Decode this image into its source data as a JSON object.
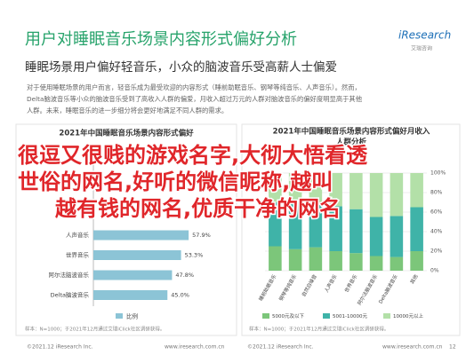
{
  "header": {
    "title": "用户对睡眠音乐场景内容形式偏好分析",
    "logo": {
      "brand": "iResearch",
      "sub": "艾瑞咨询"
    }
  },
  "subtitle": "睡眠场景用户偏好轻音乐，小众的脑波音乐受高薪人士偏爱",
  "paragraph": [
    "对于使用睡眠场景的用户而言，轻音乐成为最受欢迎的内容形式（睡前助眠音乐、钢琴等纯音乐、人声音乐）。然而，",
    "Delta脑波音乐等小众的脑波音乐受到了高收入人群的偏爱，月收入超过万元的人群对脑波音乐的偏好度明显高于其他",
    "人群。未来，睡眠音乐的进一步细分将会更好地满足不同人群的需求。"
  ],
  "left_chart": {
    "type": "bar",
    "title": "2021年中国睡眠音乐场景内容形式偏好",
    "categories": [
      "人声音乐",
      "世界音乐",
      "阿尔法脑波音乐",
      "Delta脑波音乐"
    ],
    "values": [
      57.9,
      53.3,
      47.8,
      45.0
    ],
    "value_labels": [
      "57.9%",
      "53.3%",
      "47.8%",
      "45.0%"
    ],
    "xlim": [
      0,
      100
    ],
    "color": "#8cc4d6",
    "legend": "比例",
    "note": "样本：N=1000；于2021年12月通过艾瑞iClick社区调研获得。"
  },
  "right_chart": {
    "type": "stacked-bar",
    "title": [
      "2021年中国睡眠音乐场景内容形式偏好月收入",
      "人群分析"
    ],
    "categories": [
      "睡前助眠音乐",
      "钢琴等纯音乐",
      "自然白噪音",
      "人声音乐",
      "世界音乐",
      "阿尔法脑波音乐",
      "Delta脑波音乐",
      "其他"
    ],
    "series": [
      {
        "name": "5000元及以下",
        "color": "#7cc67a",
        "values": [
          25,
          22,
          24,
          20,
          18,
          15,
          14,
          20
        ]
      },
      {
        "name": "5001-10000元",
        "color": "#3fb3a8",
        "values": [
          45,
          48,
          44,
          46,
          45,
          40,
          42,
          45
        ]
      },
      {
        "name": "10000元以上",
        "color": "#b3e0a8",
        "values": [
          30,
          30,
          32,
          34,
          37,
          45,
          44,
          35
        ]
      }
    ],
    "ylim": [
      0,
      100
    ],
    "yticks": [
      {
        "value": 0,
        "label": "0%"
      },
      {
        "value": 20,
        "label": "20%"
      },
      {
        "value": 40,
        "label": "40%"
      },
      {
        "value": 60,
        "label": "60%"
      },
      {
        "value": 80,
        "label": "80%"
      },
      {
        "value": 100,
        "label": "100%"
      }
    ],
    "note": "样本：N=1000；于2021年12月通过艾瑞iClick社区调研获得。"
  },
  "overlay": {
    "lines": [
      "很逗又很贱的游戏名字,大彻大悟看透",
      "世俗的网名,好听的微信昵称,越叫",
      "越有钱的网名,优质干净的网名"
    ]
  },
  "footer": {
    "left": [
      "©2021.12 iResearch Inc.",
      "www.iresearch.com.cn"
    ],
    "right": [
      "©2021.12 iResearch Inc.",
      "www.iresearch.com.cn"
    ],
    "page": "12"
  }
}
